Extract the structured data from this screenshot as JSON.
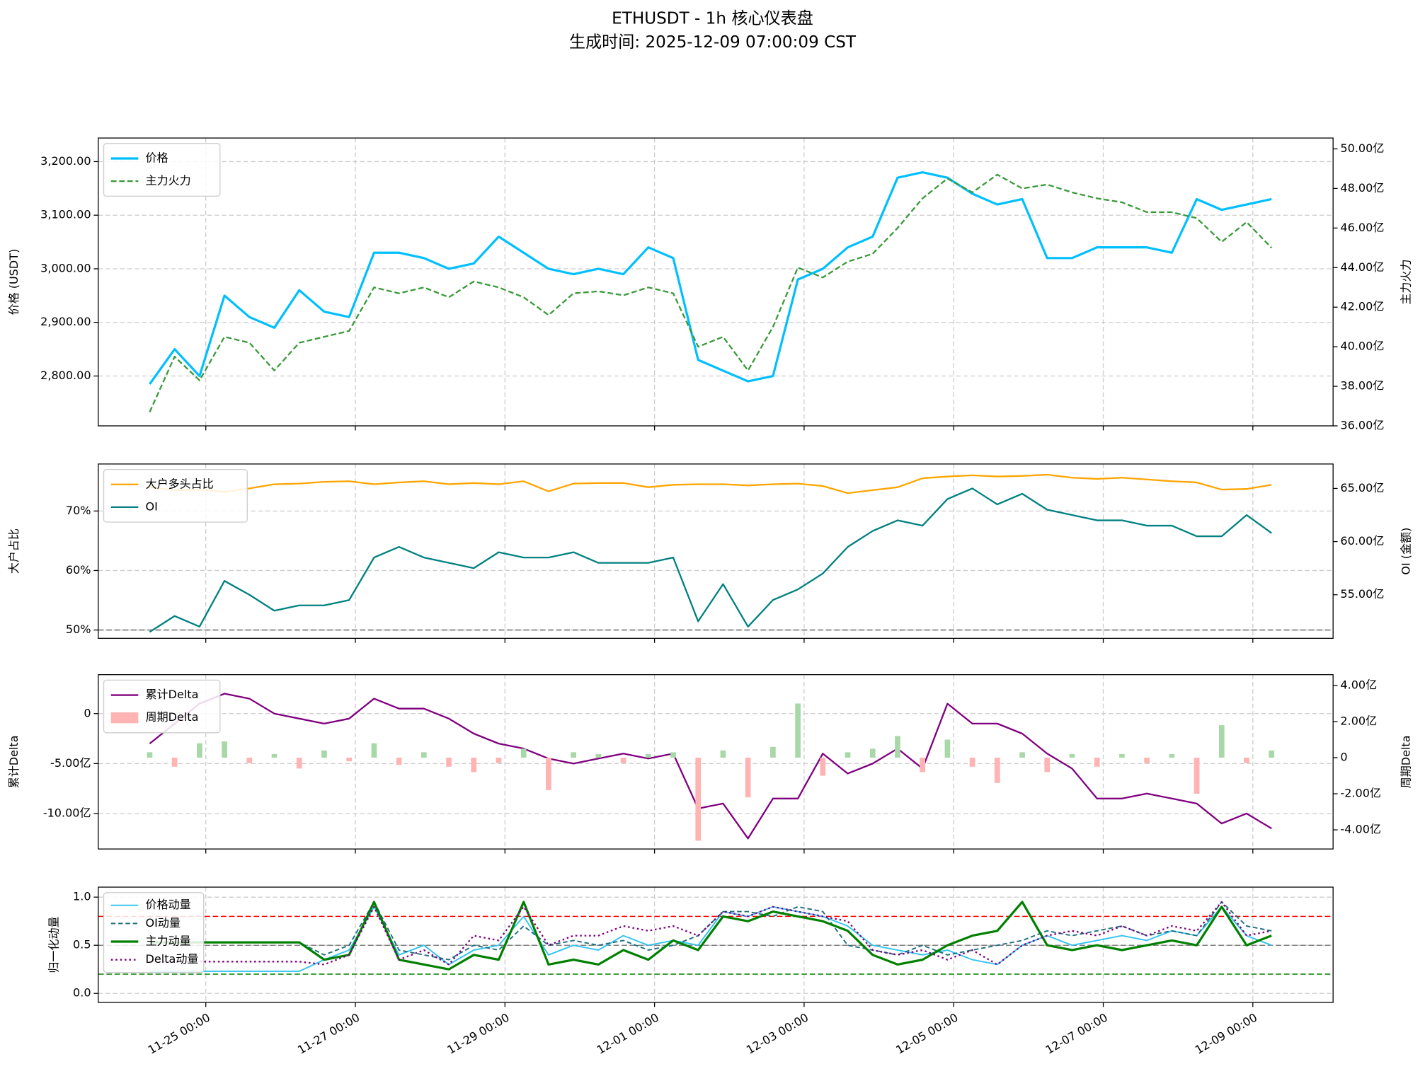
{
  "title": "ETHUSDT - 1h 核心仪表盘",
  "subtitle": "生成时间: 2025-12-09 07:00:09 CST",
  "chart_data": [
    {
      "type": "line",
      "ylabel": "价格 (USDT)",
      "y2label": "主力火力",
      "y2label_color": "#808080",
      "grid": true,
      "legend": "upper left",
      "xlim": [
        "11-23 13:30",
        "12-10 01:45"
      ],
      "x": [
        "11-24 06:00",
        "11-24 14:00",
        "11-24 22:00",
        "11-25 06:00",
        "11-25 14:00",
        "11-25 22:00",
        "11-26 06:00",
        "11-26 14:00",
        "11-26 22:00",
        "11-27 06:00",
        "11-27 14:00",
        "11-27 22:00",
        "11-28 06:00",
        "11-28 14:00",
        "11-28 22:00",
        "11-29 06:00",
        "11-29 14:00",
        "11-29 22:00",
        "11-30 06:00",
        "11-30 14:00",
        "11-30 22:00",
        "12-01 06:00",
        "12-01 14:00",
        "12-01 22:00",
        "12-02 06:00",
        "12-02 14:00",
        "12-02 22:00",
        "12-03 06:00",
        "12-03 14:00",
        "12-03 22:00",
        "12-04 06:00",
        "12-04 14:00",
        "12-04 22:00",
        "12-05 06:00",
        "12-05 14:00",
        "12-05 22:00",
        "12-06 06:00",
        "12-06 14:00",
        "12-06 22:00",
        "12-07 06:00",
        "12-07 14:00",
        "12-07 22:00",
        "12-08 06:00",
        "12-08 14:00",
        "12-08 22:00",
        "12-09 06:00"
      ],
      "ylim": [
        2707,
        3244
      ],
      "yticks": [
        {
          "value": 2800,
          "label": "2,800.00"
        },
        {
          "value": 2900,
          "label": "2,900.00"
        },
        {
          "value": 3000,
          "label": "3,000.00"
        },
        {
          "value": 3100,
          "label": "3,100.00"
        },
        {
          "value": 3200,
          "label": "3,200.00"
        }
      ],
      "y2lim": [
        36,
        50.55
      ],
      "y2ticks": [
        {
          "value": 36,
          "label": "36.00亿"
        },
        {
          "value": 38,
          "label": "38.00亿"
        },
        {
          "value": 40,
          "label": "40.00亿"
        },
        {
          "value": 42,
          "label": "42.00亿"
        },
        {
          "value": 44,
          "label": "44.00亿"
        },
        {
          "value": 46,
          "label": "46.00亿"
        },
        {
          "value": 48,
          "label": "48.00亿"
        },
        {
          "value": 50,
          "label": "50.00亿"
        }
      ],
      "series": [
        {
          "name": "价格",
          "color": "#00bfff",
          "width": 2.5,
          "values": [
            2785,
            2850,
            2800,
            2950,
            2910,
            2890,
            2960,
            2920,
            2910,
            3030,
            3030,
            3020,
            3000,
            3010,
            3060,
            3030,
            3000,
            2990,
            3000,
            2990,
            3040,
            3020,
            2830,
            2810,
            2790,
            2800,
            2980,
            3000,
            3040,
            3060,
            3170,
            3180,
            3170,
            3140,
            3120,
            3130,
            3020,
            3020,
            3040,
            3040,
            3040,
            3030,
            3130,
            3110,
            3120,
            3130
          ]
        },
        {
          "name": "主力火力",
          "color": "#3a9a3a",
          "width": 1.8,
          "dash": "6,3",
          "axis": "y2",
          "values": [
            36.7,
            39.5,
            38.3,
            40.5,
            40.2,
            38.8,
            40.2,
            40.5,
            40.8,
            43.0,
            42.7,
            43.0,
            42.5,
            43.3,
            43.0,
            42.5,
            41.6,
            42.7,
            42.8,
            42.6,
            43.0,
            42.7,
            40.0,
            40.5,
            38.8,
            41.0,
            44.0,
            43.5,
            44.3,
            44.7,
            46.0,
            47.5,
            48.5,
            47.8,
            48.7,
            48.0,
            48.2,
            47.8,
            47.5,
            47.3,
            46.8,
            46.8,
            46.5,
            45.3,
            46.3,
            45.0
          ]
        }
      ]
    },
    {
      "type": "line",
      "ylabel": "大户占比",
      "ylabel_color": "#ffa500",
      "y2label": "OI (金额)",
      "y2label_color": "#008080",
      "grid": true,
      "legend": "upper left",
      "xlim": [
        "11-23 13:30",
        "12-10 01:45"
      ],
      "x": [
        "11-24 06:00",
        "11-24 14:00",
        "11-24 22:00",
        "11-25 06:00",
        "11-25 14:00",
        "11-25 22:00",
        "11-26 06:00",
        "11-26 14:00",
        "11-26 22:00",
        "11-27 06:00",
        "11-27 14:00",
        "11-27 22:00",
        "11-28 06:00",
        "11-28 14:00",
        "11-28 22:00",
        "11-29 06:00",
        "11-29 14:00",
        "11-29 22:00",
        "11-30 06:00",
        "11-30 14:00",
        "11-30 22:00",
        "12-01 06:00",
        "12-01 14:00",
        "12-01 22:00",
        "12-02 06:00",
        "12-02 14:00",
        "12-02 22:00",
        "12-03 06:00",
        "12-03 14:00",
        "12-03 22:00",
        "12-04 06:00",
        "12-04 14:00",
        "12-04 22:00",
        "12-05 06:00",
        "12-05 14:00",
        "12-05 22:00",
        "12-06 06:00",
        "12-06 14:00",
        "12-06 22:00",
        "12-07 06:00",
        "12-07 14:00",
        "12-07 22:00",
        "12-08 06:00",
        "12-08 14:00",
        "12-08 22:00",
        "12-09 06:00"
      ],
      "ylim": [
        48.6,
        77.9
      ],
      "yticks": [
        {
          "value": 50,
          "label": "50%"
        },
        {
          "value": 60,
          "label": "60%"
        },
        {
          "value": 70,
          "label": "70%"
        }
      ],
      "hlines": [
        {
          "value": 50,
          "color": "#777777"
        }
      ],
      "y2lim": [
        50.9,
        67.3
      ],
      "y2ticks": [
        {
          "value": 55,
          "label": "55.00亿"
        },
        {
          "value": 60,
          "label": "60.00亿"
        },
        {
          "value": 65,
          "label": "65.00亿"
        }
      ],
      "series": [
        {
          "name": "大户多头占比",
          "color": "#ffa500",
          "width": 1.8,
          "values": [
            74,
            73.5,
            73.6,
            73.2,
            73.8,
            74.5,
            74.6,
            74.9,
            75,
            74.5,
            74.8,
            75,
            74.5,
            74.7,
            74.5,
            75,
            73.3,
            74.6,
            74.7,
            74.7,
            74,
            74.4,
            74.5,
            74.5,
            74.3,
            74.5,
            74.6,
            74.2,
            73,
            73.5,
            74,
            75.5,
            75.8,
            76,
            75.8,
            75.9,
            76.1,
            75.6,
            75.4,
            75.6,
            75.3,
            75,
            74.8,
            73.6,
            73.7,
            74.4
          ]
        },
        {
          "name": "OI",
          "color": "#008080",
          "width": 1.8,
          "axis": "y2",
          "values": [
            51.5,
            53,
            52,
            56.3,
            55,
            53.5,
            54,
            54,
            54.5,
            58.5,
            59.5,
            58.5,
            58,
            57.5,
            59,
            58.5,
            58.5,
            59,
            58,
            58,
            58,
            58.5,
            52.5,
            56,
            52,
            54.5,
            55.5,
            57,
            59.5,
            61,
            62,
            61.5,
            64,
            65,
            63.5,
            64.5,
            63,
            62.5,
            62,
            62,
            61.5,
            61.5,
            60.5,
            60.5,
            62.5,
            60.8
          ]
        }
      ]
    },
    {
      "type": "line",
      "ylabel": "累计Delta",
      "ylabel_color": "#800080",
      "y2label": "周期Delta",
      "y2label_color": "#808080",
      "grid": true,
      "legend": "upper left",
      "xlim": [
        "11-23 13:30",
        "12-10 01:45"
      ],
      "x": [
        "11-24 06:00",
        "11-24 14:00",
        "11-24 22:00",
        "11-25 06:00",
        "11-25 14:00",
        "11-25 22:00",
        "11-26 06:00",
        "11-26 14:00",
        "11-26 22:00",
        "11-27 06:00",
        "11-27 14:00",
        "11-27 22:00",
        "11-28 06:00",
        "11-28 14:00",
        "11-28 22:00",
        "11-29 06:00",
        "11-29 14:00",
        "11-29 22:00",
        "11-30 06:00",
        "11-30 14:00",
        "11-30 22:00",
        "12-01 06:00",
        "12-01 14:00",
        "12-01 22:00",
        "12-02 06:00",
        "12-02 14:00",
        "12-02 22:00",
        "12-03 06:00",
        "12-03 14:00",
        "12-03 22:00",
        "12-04 06:00",
        "12-04 14:00",
        "12-04 22:00",
        "12-05 06:00",
        "12-05 14:00",
        "12-05 22:00",
        "12-06 06:00",
        "12-06 14:00",
        "12-06 22:00",
        "12-07 06:00",
        "12-07 14:00",
        "12-07 22:00",
        "12-08 06:00",
        "12-08 14:00",
        "12-08 22:00",
        "12-09 06:00"
      ],
      "ylim": [
        -13.55,
        3.9
      ],
      "yticks": [
        {
          "value": -10,
          "label": "-10.00亿"
        },
        {
          "value": -5,
          "label": "-5.00亿"
        },
        0
      ],
      "y2lim": [
        -5.06,
        4.6
      ],
      "y2ticks": [
        {
          "value": -4,
          "label": "-4.00亿"
        },
        {
          "value": -2,
          "label": "-2.00亿"
        },
        0,
        {
          "value": 2,
          "label": "2.00亿"
        },
        {
          "value": 4,
          "label": "4.00亿"
        }
      ],
      "series": [
        {
          "name": "累计Delta",
          "color": "#800080",
          "width": 1.8,
          "values": [
            -3,
            -1,
            1,
            2,
            1.5,
            0,
            -0.5,
            -1,
            -0.5,
            1.5,
            0.5,
            0.5,
            -0.5,
            -2,
            -3,
            -3.5,
            -4.5,
            -5,
            -4.5,
            -4,
            -4.5,
            -4,
            -9.5,
            -9,
            -12.5,
            -8.5,
            -8.5,
            -4,
            -6,
            -5,
            -3.5,
            -5.5,
            1,
            -1,
            -1,
            -2,
            -4,
            -5.5,
            -8.5,
            -8.5,
            -8,
            -8.5,
            -9,
            -11,
            -10,
            -11.5
          ]
        },
        {
          "name": "周期Delta",
          "type": "bar",
          "color": "#ffb3b3",
          "positive_color": "#a8d8a8",
          "axis": "y2",
          "values": [
            0.3,
            -0.5,
            0.8,
            0.9,
            -0.3,
            0.2,
            -0.6,
            0.4,
            -0.2,
            0.8,
            -0.4,
            0.3,
            -0.5,
            -0.8,
            -0.3,
            0.5,
            -1.8,
            0.3,
            0.2,
            -0.3,
            0.2,
            0.3,
            -4.6,
            0.4,
            -2.2,
            0.6,
            3.0,
            -1.0,
            0.3,
            0.5,
            1.2,
            -0.8,
            1.0,
            -0.5,
            -1.4,
            0.3,
            -0.8,
            0.2,
            -0.5,
            0.2,
            -0.3,
            0.2,
            -2.0,
            1.8,
            -0.3,
            0.4
          ]
        }
      ]
    },
    {
      "type": "line",
      "ylabel": "归一化动量",
      "grid": true,
      "legend": "upper left",
      "legend_small": true,
      "xlim": [
        "11-23 13:30",
        "12-10 01:45"
      ],
      "x": [
        "11-24 06:00",
        "11-24 14:00",
        "11-24 22:00",
        "11-25 06:00",
        "11-25 14:00",
        "11-25 22:00",
        "11-26 06:00",
        "11-26 14:00",
        "11-26 22:00",
        "11-27 06:00",
        "11-27 14:00",
        "11-27 22:00",
        "11-28 06:00",
        "11-28 14:00",
        "11-28 22:00",
        "11-29 06:00",
        "11-29 14:00",
        "11-29 22:00",
        "11-30 06:00",
        "11-30 14:00",
        "11-30 22:00",
        "12-01 06:00",
        "12-01 14:00",
        "12-01 22:00",
        "12-02 06:00",
        "12-02 14:00",
        "12-02 22:00",
        "12-03 06:00",
        "12-03 14:00",
        "12-03 22:00",
        "12-04 06:00",
        "12-04 14:00",
        "12-04 22:00",
        "12-05 06:00",
        "12-05 14:00",
        "12-05 22:00",
        "12-06 06:00",
        "12-06 14:00",
        "12-06 22:00",
        "12-07 06:00",
        "12-07 14:00",
        "12-07 22:00",
        "12-08 06:00",
        "12-08 14:00",
        "12-08 22:00",
        "12-09 06:00"
      ],
      "xticks": [
        "11-25 00:00",
        "11-27 00:00",
        "11-29 00:00",
        "12-01 00:00",
        "12-03 00:00",
        "12-05 00:00",
        "12-07 00:00",
        "12-09 00:00"
      ],
      "ylim": [
        -0.094,
        1.104
      ],
      "yticks": [
        {
          "value": 0,
          "label": "0.0"
        },
        {
          "value": 0.5,
          "label": "0.5"
        },
        {
          "value": 1,
          "label": "1.0"
        }
      ],
      "hlines": [
        {
          "value": 0.8,
          "color": "#ff0000"
        },
        {
          "value": 0.5,
          "color": "#808080"
        },
        {
          "value": 0.2,
          "color": "#008000"
        }
      ],
      "series": [
        {
          "name": "价格动量",
          "color": "#33c3f0",
          "width": 1.5,
          "values": [
            0.23,
            0.23,
            0.23,
            0.23,
            0.23,
            0.23,
            0.23,
            0.35,
            0.45,
            0.9,
            0.4,
            0.5,
            0.3,
            0.45,
            0.5,
            0.8,
            0.4,
            0.5,
            0.45,
            0.6,
            0.5,
            0.55,
            0.5,
            0.85,
            0.8,
            0.9,
            0.85,
            0.8,
            0.7,
            0.5,
            0.45,
            0.4,
            0.45,
            0.35,
            0.3,
            0.5,
            0.6,
            0.5,
            0.55,
            0.6,
            0.55,
            0.65,
            0.6,
            0.9,
            0.6,
            0.5
          ]
        },
        {
          "name": "OI动量",
          "color": "#1f6f7f",
          "width": 1.5,
          "dash": "5,3",
          "values": [
            0.53,
            0.53,
            0.53,
            0.53,
            0.53,
            0.53,
            0.53,
            0.4,
            0.5,
            0.95,
            0.45,
            0.4,
            0.35,
            0.5,
            0.45,
            0.7,
            0.5,
            0.55,
            0.5,
            0.55,
            0.45,
            0.5,
            0.6,
            0.85,
            0.85,
            0.8,
            0.9,
            0.85,
            0.5,
            0.45,
            0.4,
            0.5,
            0.4,
            0.45,
            0.5,
            0.55,
            0.65,
            0.6,
            0.65,
            0.7,
            0.6,
            0.65,
            0.6,
            0.95,
            0.7,
            0.65
          ]
        },
        {
          "name": "主力动量",
          "color": "#008000",
          "width": 2.5,
          "values": [
            0.53,
            0.53,
            0.53,
            0.53,
            0.53,
            0.53,
            0.53,
            0.35,
            0.4,
            0.95,
            0.35,
            0.3,
            0.25,
            0.4,
            0.35,
            0.95,
            0.3,
            0.35,
            0.3,
            0.45,
            0.35,
            0.55,
            0.45,
            0.8,
            0.75,
            0.85,
            0.8,
            0.75,
            0.65,
            0.4,
            0.3,
            0.35,
            0.5,
            0.6,
            0.65,
            0.95,
            0.5,
            0.45,
            0.5,
            0.45,
            0.5,
            0.55,
            0.5,
            0.9,
            0.5,
            0.6
          ]
        },
        {
          "name": "Delta动量",
          "color": "#800080",
          "width": 1.8,
          "dash": "2,3",
          "values": [
            0.33,
            0.33,
            0.33,
            0.33,
            0.33,
            0.33,
            0.33,
            0.3,
            0.4,
            0.9,
            0.35,
            0.45,
            0.3,
            0.6,
            0.55,
            0.9,
            0.5,
            0.6,
            0.6,
            0.7,
            0.65,
            0.7,
            0.6,
            0.85,
            0.8,
            0.9,
            0.85,
            0.8,
            0.75,
            0.45,
            0.4,
            0.45,
            0.35,
            0.45,
            0.3,
            0.5,
            0.6,
            0.65,
            0.6,
            0.7,
            0.6,
            0.7,
            0.65,
            0.95,
            0.6,
            0.65
          ]
        }
      ]
    }
  ]
}
